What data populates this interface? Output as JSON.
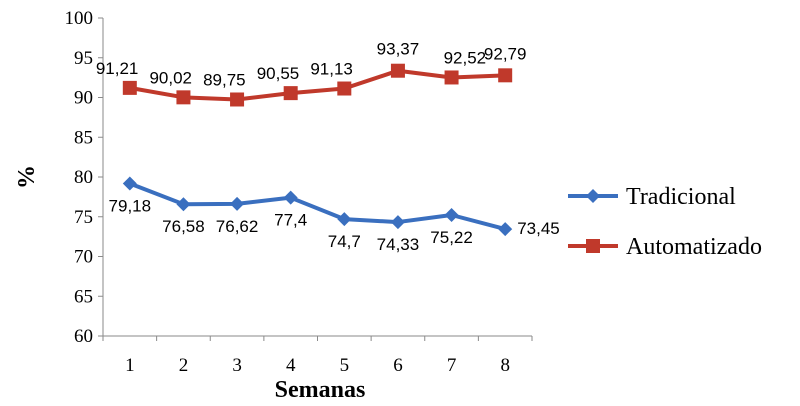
{
  "chart_data": {
    "type": "line",
    "x": [
      1,
      2,
      3,
      4,
      5,
      6,
      7,
      8
    ],
    "xlabel": "Semanas",
    "ylabel": "%",
    "ylim": [
      60,
      100
    ],
    "yticks": [
      60,
      65,
      70,
      75,
      80,
      85,
      90,
      95,
      100
    ],
    "grid": false,
    "legend_position": "right",
    "series": [
      {
        "name": "Tradicional",
        "color": "#3a6fbf",
        "marker": "diamond",
        "values": [
          79.18,
          76.58,
          76.62,
          77.4,
          74.7,
          74.33,
          75.22,
          73.45
        ],
        "labels": [
          "79,18",
          "76,58",
          "76,62",
          "77,4",
          "74,7",
          "74,33",
          "75,22",
          "73,45"
        ]
      },
      {
        "name": "Automatizado",
        "color": "#c0392b",
        "marker": "square",
        "values": [
          91.21,
          90.02,
          89.75,
          90.55,
          91.13,
          93.37,
          92.52,
          92.79
        ],
        "labels": [
          "91,21",
          "90,02",
          "89,75",
          "90,55",
          "91,13",
          "93,37",
          "92,52",
          "92,79"
        ]
      }
    ]
  }
}
